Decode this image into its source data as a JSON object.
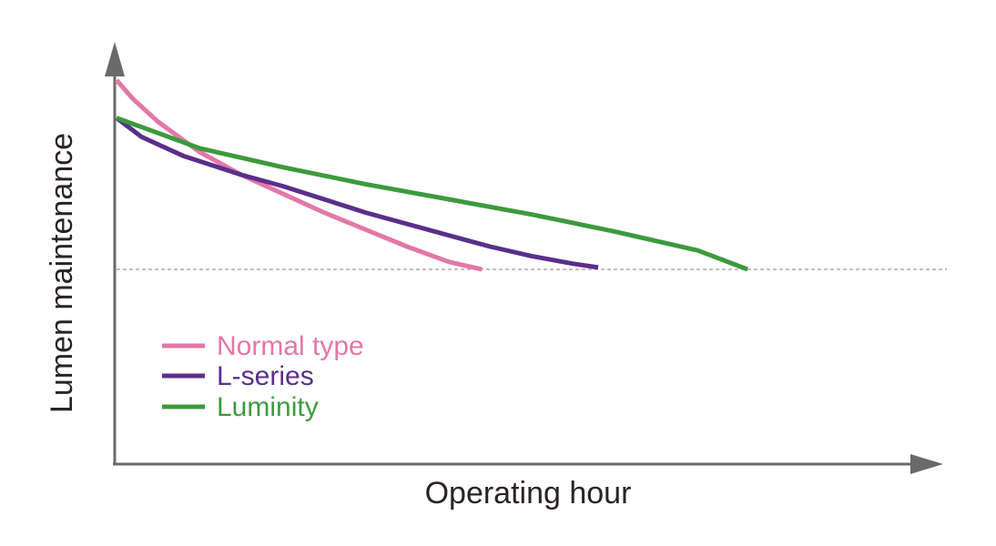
{
  "chart_data": {
    "type": "line",
    "xlabel": "Operating hour",
    "ylabel": "Lumen maintenance",
    "x_ticks": "none",
    "y_ticks": "none",
    "xlim": [
      0,
      100
    ],
    "ylim": [
      0,
      100
    ],
    "threshold": {
      "y": 50,
      "style": "dashed"
    },
    "legend_position": "lower-left",
    "series": [
      {
        "name": "Normal type",
        "color": "#e377a8",
        "points": [
          [
            0,
            100
          ],
          [
            2,
            95
          ],
          [
            5,
            89
          ],
          [
            10,
            81
          ],
          [
            15,
            75
          ],
          [
            20,
            70
          ],
          [
            25,
            65
          ],
          [
            30,
            60.5
          ],
          [
            35,
            56
          ],
          [
            40,
            52
          ],
          [
            44,
            50
          ]
        ]
      },
      {
        "name": "L-series",
        "color": "#5a2f8a",
        "points": [
          [
            0,
            90
          ],
          [
            3,
            85
          ],
          [
            8,
            80
          ],
          [
            15,
            75
          ],
          [
            20,
            72
          ],
          [
            25,
            68.5
          ],
          [
            30,
            65
          ],
          [
            35,
            62
          ],
          [
            40,
            59
          ],
          [
            45,
            56
          ],
          [
            50,
            53.5
          ],
          [
            55,
            51.5
          ],
          [
            58,
            50.5
          ]
        ]
      },
      {
        "name": "Luminity",
        "color": "#3d9a3d",
        "points": [
          [
            0,
            90
          ],
          [
            5,
            86
          ],
          [
            10,
            82
          ],
          [
            20,
            77
          ],
          [
            30,
            72.5
          ],
          [
            40,
            68.5
          ],
          [
            50,
            64.5
          ],
          [
            60,
            60
          ],
          [
            70,
            55
          ],
          [
            76,
            50
          ]
        ]
      }
    ]
  }
}
